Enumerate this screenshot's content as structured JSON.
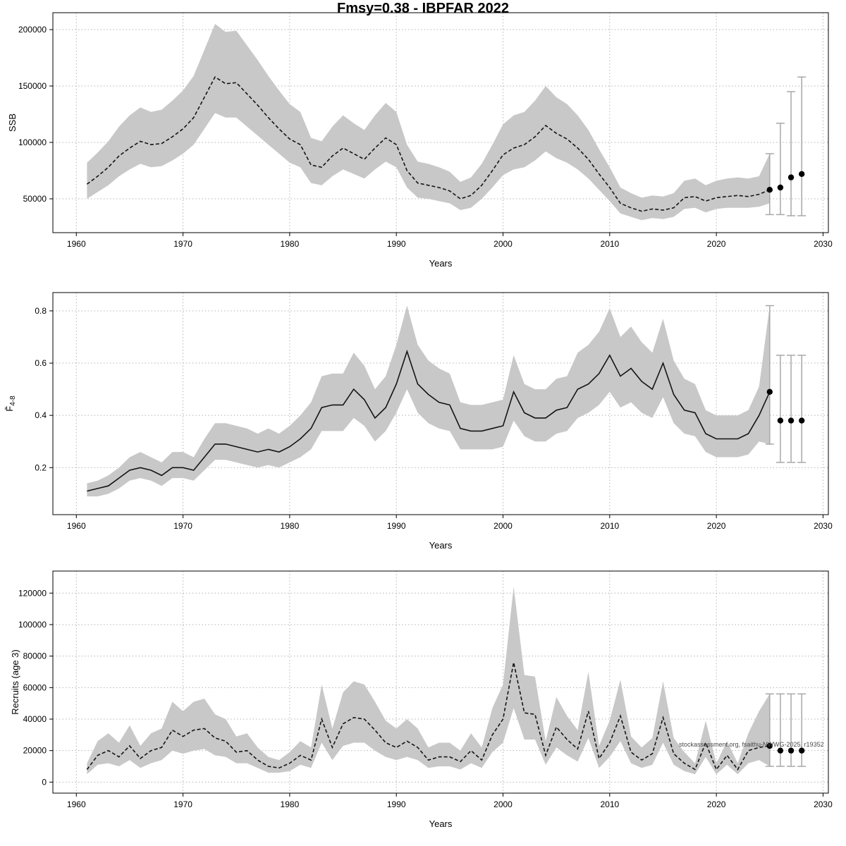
{
  "title": "Fmsy=0.38 - IBPFAR 2022",
  "watermark": "stockassessment.org, fsaithu-NWWG-2025, r19352",
  "colors": {
    "band": "#c8c8c8",
    "line": "#141414",
    "whisker": "#a8a8a8",
    "grid": "#b3b3b3",
    "frame": "#000000",
    "point": "#000000",
    "tick_text": "#000000"
  },
  "chart_data": [
    {
      "type": "area",
      "name": "ssb",
      "ylabel": "SSB",
      "xlabel": "Years",
      "dashed": true,
      "x_start": 1961,
      "xlim": [
        1957.8,
        2030.5
      ],
      "ylim": [
        20000,
        215000
      ],
      "xticks": [
        1960,
        1970,
        1980,
        1990,
        2000,
        2010,
        2020,
        2030
      ],
      "yticks": [
        50000,
        100000,
        150000,
        200000
      ],
      "mean": [
        63000,
        70000,
        78000,
        88000,
        95000,
        101000,
        98000,
        99000,
        105000,
        112000,
        122000,
        140000,
        158000,
        152000,
        153000,
        143000,
        133000,
        122000,
        112000,
        103000,
        98000,
        80000,
        78000,
        88000,
        95000,
        90000,
        85000,
        95000,
        104000,
        98000,
        75000,
        64000,
        62000,
        60000,
        57000,
        50000,
        53000,
        62000,
        75000,
        89000,
        95000,
        98000,
        105000,
        115000,
        108000,
        103000,
        95000,
        85000,
        72000,
        60000,
        46000,
        42000,
        39000,
        41000,
        40000,
        42000,
        51000,
        52000,
        48000,
        51000,
        52000,
        53000,
        52000,
        54000,
        58000
      ],
      "lo": [
        50000,
        56000,
        62000,
        70000,
        76000,
        81000,
        78000,
        79000,
        84000,
        90000,
        98000,
        112000,
        126000,
        122000,
        122000,
        114000,
        106000,
        98000,
        90000,
        82000,
        78000,
        64000,
        62000,
        70000,
        76000,
        72000,
        68000,
        76000,
        83000,
        78000,
        60000,
        51000,
        50000,
        48000,
        46000,
        40000,
        42000,
        50000,
        60000,
        71000,
        76000,
        78000,
        84000,
        92000,
        86000,
        82000,
        76000,
        68000,
        58000,
        48000,
        37000,
        34000,
        31000,
        33000,
        32000,
        34000,
        41000,
        42000,
        38000,
        41000,
        42000,
        42000,
        42000,
        43000,
        46000
      ],
      "hi": [
        82000,
        91000,
        101000,
        114000,
        124000,
        131000,
        127000,
        129000,
        137000,
        146000,
        159000,
        182000,
        205000,
        198000,
        199000,
        186000,
        173000,
        159000,
        146000,
        134000,
        127000,
        104000,
        101000,
        114000,
        124000,
        117000,
        111000,
        124000,
        135000,
        127000,
        98000,
        83000,
        81000,
        78000,
        74000,
        65000,
        69000,
        81000,
        98000,
        116000,
        124000,
        127000,
        137000,
        150000,
        140000,
        134000,
        124000,
        111000,
        94000,
        78000,
        60000,
        55000,
        51000,
        53000,
        52000,
        55000,
        66000,
        68000,
        62000,
        66000,
        68000,
        69000,
        68000,
        70000,
        90000
      ],
      "last_point": {
        "x": 2025,
        "y": 58000,
        "lo": 36000,
        "hi": 90000
      },
      "forecast": [
        {
          "x": 2026,
          "y": 60000,
          "lo": 36000,
          "hi": 117000
        },
        {
          "x": 2027,
          "y": 69000,
          "lo": 35000,
          "hi": 145000
        },
        {
          "x": 2028,
          "y": 72000,
          "lo": 35000,
          "hi": 158000
        }
      ]
    },
    {
      "type": "area",
      "name": "fbar",
      "ylabel": "F̄",
      "ylabel_sub": "4-8",
      "xlabel": "Years",
      "dashed": false,
      "x_start": 1961,
      "xlim": [
        1957.8,
        2030.5
      ],
      "ylim": [
        0.02,
        0.87
      ],
      "xticks": [
        1960,
        1970,
        1980,
        1990,
        2000,
        2010,
        2020,
        2030
      ],
      "yticks": [
        0.2,
        0.4,
        0.6,
        0.8
      ],
      "mean": [
        0.11,
        0.12,
        0.13,
        0.16,
        0.19,
        0.2,
        0.19,
        0.17,
        0.2,
        0.2,
        0.19,
        0.24,
        0.29,
        0.29,
        0.28,
        0.27,
        0.26,
        0.27,
        0.26,
        0.28,
        0.31,
        0.35,
        0.43,
        0.44,
        0.44,
        0.5,
        0.46,
        0.39,
        0.43,
        0.52,
        0.645,
        0.52,
        0.48,
        0.45,
        0.44,
        0.35,
        0.34,
        0.34,
        0.35,
        0.36,
        0.49,
        0.41,
        0.39,
        0.39,
        0.42,
        0.43,
        0.5,
        0.52,
        0.56,
        0.63,
        0.55,
        0.58,
        0.53,
        0.5,
        0.6,
        0.48,
        0.42,
        0.41,
        0.33,
        0.31,
        0.31,
        0.31,
        0.33,
        0.4,
        0.49
      ],
      "lo": [
        0.09,
        0.09,
        0.1,
        0.12,
        0.15,
        0.16,
        0.15,
        0.13,
        0.16,
        0.16,
        0.15,
        0.19,
        0.23,
        0.23,
        0.22,
        0.21,
        0.2,
        0.21,
        0.2,
        0.22,
        0.24,
        0.27,
        0.34,
        0.34,
        0.34,
        0.39,
        0.36,
        0.3,
        0.34,
        0.41,
        0.5,
        0.41,
        0.37,
        0.35,
        0.34,
        0.27,
        0.27,
        0.27,
        0.27,
        0.28,
        0.38,
        0.32,
        0.3,
        0.3,
        0.33,
        0.34,
        0.39,
        0.41,
        0.44,
        0.49,
        0.43,
        0.45,
        0.41,
        0.39,
        0.47,
        0.37,
        0.33,
        0.32,
        0.26,
        0.24,
        0.24,
        0.24,
        0.25,
        0.3,
        0.29
      ],
      "hi": [
        0.14,
        0.15,
        0.17,
        0.2,
        0.24,
        0.26,
        0.24,
        0.22,
        0.26,
        0.26,
        0.24,
        0.31,
        0.37,
        0.37,
        0.36,
        0.35,
        0.33,
        0.35,
        0.33,
        0.36,
        0.4,
        0.45,
        0.55,
        0.56,
        0.56,
        0.64,
        0.59,
        0.5,
        0.55,
        0.67,
        0.82,
        0.67,
        0.61,
        0.58,
        0.56,
        0.45,
        0.44,
        0.44,
        0.45,
        0.46,
        0.63,
        0.52,
        0.5,
        0.5,
        0.54,
        0.55,
        0.64,
        0.67,
        0.72,
        0.81,
        0.7,
        0.74,
        0.68,
        0.64,
        0.77,
        0.61,
        0.54,
        0.52,
        0.42,
        0.4,
        0.4,
        0.4,
        0.42,
        0.51,
        0.82
      ],
      "last_point": {
        "x": 2025,
        "y": 0.49,
        "lo": 0.29,
        "hi": 0.82
      },
      "forecast": [
        {
          "x": 2026,
          "y": 0.38,
          "lo": 0.22,
          "hi": 0.63
        },
        {
          "x": 2027,
          "y": 0.38,
          "lo": 0.22,
          "hi": 0.63
        },
        {
          "x": 2028,
          "y": 0.38,
          "lo": 0.22,
          "hi": 0.63
        }
      ]
    },
    {
      "type": "area",
      "name": "recruits",
      "ylabel": "Recruits (age 3)",
      "xlabel": "Years",
      "dashed": true,
      "x_start": 1961,
      "xlim": [
        1957.8,
        2030.5
      ],
      "ylim": [
        -7000,
        134000
      ],
      "xticks": [
        1960,
        1970,
        1980,
        1990,
        2000,
        2010,
        2020,
        2030
      ],
      "yticks": [
        0,
        20000,
        40000,
        60000,
        80000,
        100000,
        120000
      ],
      "mean": [
        8000,
        17000,
        20000,
        16000,
        23000,
        15000,
        20000,
        22000,
        33000,
        29000,
        33000,
        34000,
        28000,
        26000,
        19000,
        20000,
        14000,
        10000,
        9000,
        12000,
        17000,
        14000,
        40000,
        22000,
        37000,
        41000,
        40000,
        33000,
        25000,
        22000,
        26000,
        22000,
        14000,
        16000,
        16000,
        13000,
        20000,
        14000,
        30000,
        40000,
        76000,
        44000,
        43000,
        17000,
        35000,
        27000,
        21000,
        45000,
        15000,
        25000,
        42000,
        19000,
        14000,
        18000,
        41000,
        18000,
        12000,
        8000,
        25000,
        8000,
        17000,
        8000,
        20000,
        22000,
        23000
      ],
      "lo": [
        5000,
        11000,
        12000,
        10000,
        14000,
        9000,
        12000,
        14000,
        20000,
        18000,
        20000,
        21000,
        17000,
        16000,
        12000,
        12000,
        9000,
        6000,
        6000,
        7000,
        11000,
        9000,
        25000,
        14000,
        23000,
        25000,
        25000,
        20000,
        16000,
        14000,
        16000,
        14000,
        9000,
        10000,
        10000,
        8000,
        12000,
        9000,
        19000,
        25000,
        47000,
        27000,
        27000,
        11000,
        22000,
        17000,
        13000,
        28000,
        9000,
        16000,
        26000,
        12000,
        9000,
        11000,
        25000,
        11000,
        7000,
        5000,
        16000,
        5000,
        11000,
        5000,
        12000,
        14000,
        10000
      ],
      "hi": [
        12000,
        26000,
        31000,
        25000,
        36000,
        23000,
        31000,
        34000,
        51000,
        45000,
        51000,
        53000,
        43000,
        40000,
        29000,
        31000,
        22000,
        16000,
        14000,
        19000,
        26000,
        22000,
        62000,
        34000,
        57000,
        64000,
        62000,
        51000,
        39000,
        34000,
        40000,
        34000,
        22000,
        25000,
        25000,
        20000,
        31000,
        22000,
        47000,
        62000,
        124000,
        68000,
        67000,
        26000,
        54000,
        42000,
        33000,
        70000,
        23000,
        39000,
        65000,
        29000,
        22000,
        28000,
        64000,
        28000,
        19000,
        12000,
        39000,
        12000,
        26000,
        12000,
        31000,
        45000,
        56000
      ],
      "last_point": {
        "x": 2025,
        "y": 23000,
        "lo": 10000,
        "hi": 56000
      },
      "forecast": [
        {
          "x": 2026,
          "y": 20000,
          "lo": 10000,
          "hi": 56000
        },
        {
          "x": 2027,
          "y": 20000,
          "lo": 10000,
          "hi": 56000
        },
        {
          "x": 2028,
          "y": 20000,
          "lo": 10000,
          "hi": 56000
        }
      ]
    }
  ]
}
